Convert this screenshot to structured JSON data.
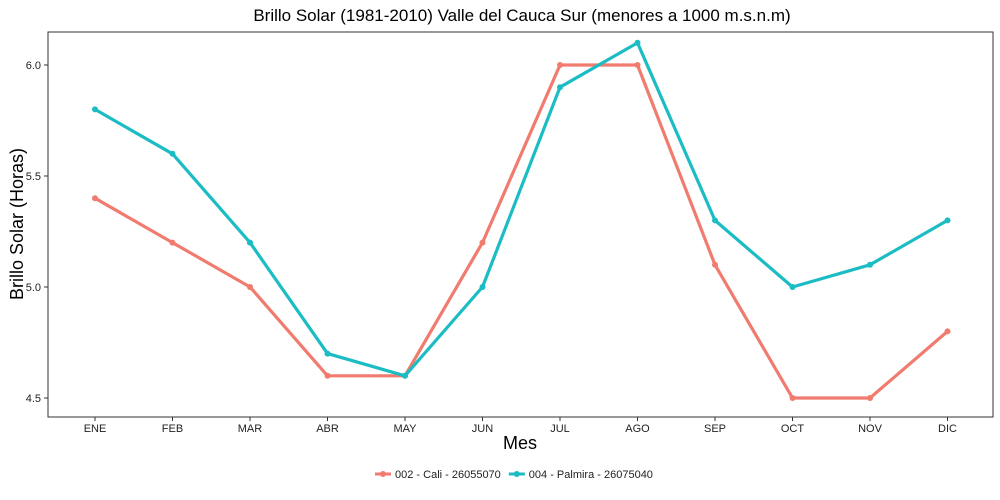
{
  "chart_data": {
    "type": "line",
    "title": "Brillo Solar (1981-2010) Valle del Cauca Sur (menores a 1000 m.s.n.m)",
    "xlabel": "Mes",
    "ylabel": "Brillo Solar (Horas)",
    "categories": [
      "ENE",
      "FEB",
      "MAR",
      "ABR",
      "MAY",
      "JUN",
      "JUL",
      "AGO",
      "SEP",
      "OCT",
      "NOV",
      "DIC"
    ],
    "ylim": [
      4.45,
      6.2
    ],
    "yticks": [
      4.5,
      5.0,
      5.5,
      6.0
    ],
    "ytick_labels": [
      "4.5",
      "5.0",
      "5.5",
      "6.0"
    ],
    "grid": false,
    "legend_position": "bottom",
    "series": [
      {
        "name": "002 - Cali - 26055070",
        "color": "#F07B6E",
        "values": [
          5.4,
          5.2,
          5.0,
          4.6,
          4.6,
          5.2,
          6.0,
          6.0,
          5.1,
          4.5,
          4.5,
          4.8
        ]
      },
      {
        "name": "004 - Palmira - 26075040",
        "color": "#1BBCC3",
        "values": [
          5.8,
          5.6,
          5.2,
          4.7,
          4.6,
          5.0,
          5.9,
          6.1,
          5.3,
          5.0,
          5.1,
          5.3
        ]
      }
    ]
  }
}
